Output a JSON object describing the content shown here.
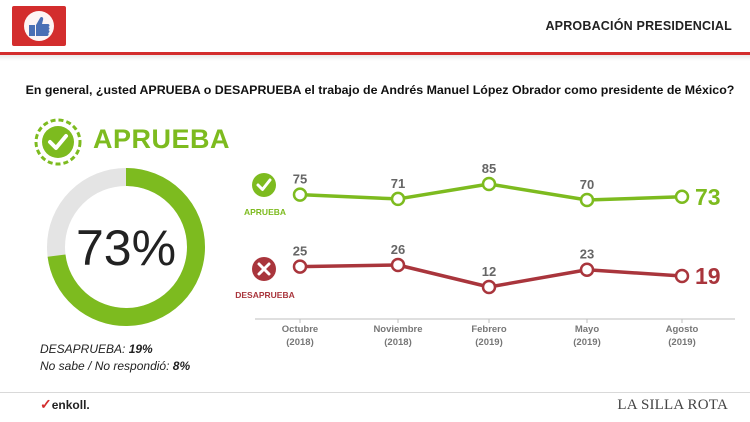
{
  "header": {
    "title": "APROBACIÓN PRESIDENCIAL",
    "logo_icon": "thumbs-up-icon"
  },
  "question": "En general, ¿usted APRUEBA o DESAPRUEBA el trabajo de Andrés Manuel López Obrador como presidente de México?",
  "approve": {
    "label": "APRUEBA",
    "percent_text": "73%",
    "percent": 73
  },
  "summary": {
    "disapprove_label": "DESAPRUEBA:",
    "disapprove_value": "19%",
    "unknown_label": "No sabe / No respondió:",
    "unknown_value": "8%"
  },
  "colors": {
    "approve": "#7dbb1f",
    "disapprove": "#a9353c",
    "accent": "#d32d2d",
    "ring_bg": "#e4e4e4"
  },
  "chart_data": {
    "type": "line",
    "categories": [
      {
        "month": "Octubre",
        "year": "(2018)"
      },
      {
        "month": "Noviembre",
        "year": "(2018)"
      },
      {
        "month": "Febrero",
        "year": "(2019)"
      },
      {
        "month": "Mayo",
        "year": "(2019)"
      },
      {
        "month": "Agosto",
        "year": "(2019)"
      }
    ],
    "series": [
      {
        "name": "APRUEBA",
        "values": [
          75,
          71,
          85,
          70,
          73
        ],
        "labels": [
          "75",
          "71",
          "85",
          "70",
          "73"
        ],
        "color": "#7dbb1f"
      },
      {
        "name": "DESAPRUEBA",
        "values": [
          25,
          26,
          12,
          23,
          19
        ],
        "labels": [
          "25",
          "26",
          "12",
          "23",
          "19"
        ],
        "color": "#a9353c"
      }
    ]
  },
  "footer": {
    "pollster": "enkoll.",
    "media": "LA SILLA ROTA"
  }
}
